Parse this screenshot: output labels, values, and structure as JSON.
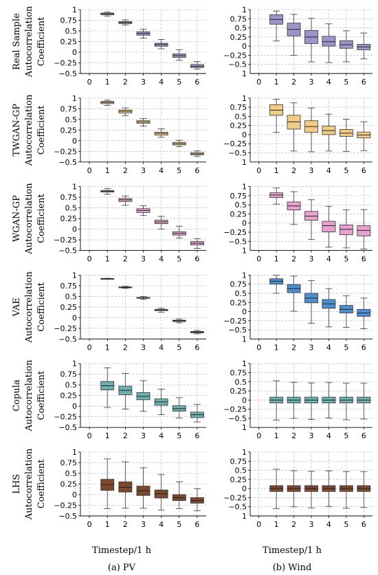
{
  "figure": {
    "xlabel": "Timestep/1 h",
    "columns": [
      {
        "key": "pv",
        "caption": "(a) PV"
      },
      {
        "key": "wind",
        "caption": "(b) Wind"
      }
    ],
    "rows": [
      {
        "name": "Real Sample",
        "ylabel_line2": "Autocorrelation",
        "ylabel_line3": "Coefficient"
      },
      {
        "name": "TWGAN-GP",
        "ylabel_line2": "Autocorrelation",
        "ylabel_line3": "Coefficient"
      },
      {
        "name": "WGAN-GP",
        "ylabel_line2": "Autocorrelation",
        "ylabel_line3": "Coefficient"
      },
      {
        "name": "VAE",
        "ylabel_line2": "Autocorrelation",
        "ylabel_line3": "Coefficient"
      },
      {
        "name": "Copula",
        "ylabel_line2": "Autocorrelation",
        "ylabel_line3": "Coefficient"
      },
      {
        "name": "LHS",
        "ylabel_line2": "Autocorrelation",
        "ylabel_line3": "Coefficient"
      }
    ]
  },
  "chart_data": [
    {
      "type": "box",
      "row": "Real Sample",
      "column": "(a) PV",
      "color": "#9b95c9",
      "x": [
        1,
        2,
        3,
        4,
        5,
        6
      ],
      "ylim": [
        -0.5,
        1
      ],
      "yticks": [
        -0.5,
        -0.25,
        0,
        0.25,
        0.5,
        0.75,
        1
      ],
      "ytick_labels": [
        "−0.5",
        "−0.25",
        "0",
        "0.25",
        "0.5",
        "0.75",
        "1"
      ],
      "xticks": [
        0,
        1,
        2,
        3,
        4,
        5,
        6
      ],
      "grid": true,
      "boxes": [
        {
          "whislo": 0.85,
          "q1": 0.88,
          "med": 0.9,
          "q3": 0.92,
          "whishi": 0.94
        },
        {
          "whislo": 0.64,
          "q1": 0.67,
          "med": 0.7,
          "q3": 0.72,
          "whishi": 0.76
        },
        {
          "whislo": 0.33,
          "q1": 0.4,
          "med": 0.44,
          "q3": 0.48,
          "whishi": 0.54
        },
        {
          "whislo": 0.08,
          "q1": 0.14,
          "med": 0.18,
          "q3": 0.21,
          "whishi": 0.3
        },
        {
          "whislo": -0.19,
          "q1": -0.12,
          "med": -0.08,
          "q3": -0.04,
          "whishi": 0.06
        },
        {
          "whislo": -0.4,
          "q1": -0.36,
          "med": -0.33,
          "q3": -0.29,
          "whishi": -0.22
        }
      ]
    },
    {
      "type": "box",
      "row": "Real Sample",
      "column": "(b) Wind",
      "color": "#9b95c9",
      "x": [
        1,
        2,
        3,
        4,
        5,
        6
      ],
      "ylim": [
        -0.75,
        1
      ],
      "yticks": [
        -0.5,
        -0.25,
        0,
        0.25,
        0.5,
        0.75,
        1
      ],
      "ytick_labels": [
        "−0.5",
        "−0.25",
        "0",
        "0.25",
        "0.5",
        "0.75",
        "1"
      ],
      "extra_ytick_labels": [
        {
          "value": -0.75,
          "label": "1"
        }
      ],
      "xticks": [
        0,
        1,
        2,
        3,
        4,
        5,
        6
      ],
      "grid": true,
      "boxes": [
        {
          "whislo": 0.14,
          "q1": 0.6,
          "med": 0.73,
          "q3": 0.86,
          "whishi": 0.96
        },
        {
          "whislo": -0.25,
          "q1": 0.28,
          "med": 0.46,
          "q3": 0.63,
          "whishi": 0.87
        },
        {
          "whislo": -0.43,
          "q1": 0.07,
          "med": 0.25,
          "q3": 0.43,
          "whishi": 0.76
        },
        {
          "whislo": -0.45,
          "q1": 0,
          "med": 0.12,
          "q3": 0.27,
          "whishi": 0.61
        },
        {
          "whislo": -0.43,
          "q1": -0.06,
          "med": 0.04,
          "q3": 0.15,
          "whishi": 0.42
        },
        {
          "whislo": -0.35,
          "q1": -0.1,
          "med": -0.02,
          "q3": 0.05,
          "whishi": 0.36
        }
      ]
    },
    {
      "type": "box",
      "row": "TWGAN-GP",
      "column": "(a) PV",
      "color": "#f0cc86",
      "x": [
        1,
        2,
        3,
        4,
        5,
        6
      ],
      "ylim": [
        -0.5,
        1
      ],
      "yticks": [
        -0.5,
        -0.25,
        0,
        0.25,
        0.5,
        0.75,
        1
      ],
      "ytick_labels": [
        "−0.5",
        "−0.25",
        "0",
        "0.25",
        "0.5",
        "0.75",
        "1"
      ],
      "xticks": [
        0,
        1,
        2,
        3,
        4,
        5,
        6
      ],
      "grid": true,
      "boxes": [
        {
          "whislo": 0.83,
          "q1": 0.87,
          "med": 0.9,
          "q3": 0.92,
          "whishi": 0.95
        },
        {
          "whislo": 0.59,
          "q1": 0.65,
          "med": 0.69,
          "q3": 0.72,
          "whishi": 0.77
        },
        {
          "whislo": 0.34,
          "q1": 0.41,
          "med": 0.44,
          "q3": 0.47,
          "whishi": 0.52
        },
        {
          "whislo": 0.08,
          "q1": 0.13,
          "med": 0.17,
          "q3": 0.2,
          "whishi": 0.28
        },
        {
          "whislo": -0.14,
          "q1": -0.1,
          "med": -0.07,
          "q3": -0.04,
          "whishi": 0.01
        },
        {
          "whislo": -0.37,
          "q1": -0.33,
          "med": -0.31,
          "q3": -0.28,
          "whishi": -0.24
        }
      ]
    },
    {
      "type": "box",
      "row": "TWGAN-GP",
      "column": "(b) Wind",
      "color": "#f0cc86",
      "x": [
        1,
        2,
        3,
        4,
        5,
        6
      ],
      "ylim": [
        -0.75,
        1
      ],
      "yticks": [
        -0.5,
        -0.25,
        0,
        0.25,
        0.5,
        0.75,
        1
      ],
      "ytick_labels": [
        "−0.5",
        "−0.25",
        "0",
        "0.25",
        "0.5",
        "0.75",
        "1"
      ],
      "extra_ytick_labels": [
        {
          "value": -0.75,
          "label": "1"
        }
      ],
      "xticks": [
        0,
        1,
        2,
        3,
        4,
        5,
        6
      ],
      "grid": true,
      "boxes": [
        {
          "whislo": 0.06,
          "q1": 0.53,
          "med": 0.67,
          "q3": 0.82,
          "whishi": 0.97
        },
        {
          "whislo": -0.45,
          "q1": 0.15,
          "med": 0.35,
          "q3": 0.53,
          "whishi": 0.87
        },
        {
          "whislo": -0.47,
          "q1": 0.06,
          "med": 0.22,
          "q3": 0.38,
          "whishi": 0.73
        },
        {
          "whislo": -0.45,
          "q1": 0,
          "med": 0.11,
          "q3": 0.23,
          "whishi": 0.56
        },
        {
          "whislo": -0.46,
          "q1": -0.05,
          "med": 0.04,
          "q3": 0.14,
          "whishi": 0.42
        },
        {
          "whislo": -0.44,
          "q1": -0.09,
          "med": -0.01,
          "q3": 0.07,
          "whishi": 0.35
        }
      ]
    },
    {
      "type": "box",
      "row": "WGAN-GP",
      "column": "(a) PV",
      "color": "#e7a2cf",
      "x": [
        1,
        2,
        3,
        4,
        5,
        6
      ],
      "ylim": [
        -0.5,
        1
      ],
      "yticks": [
        -0.5,
        -0.25,
        0,
        0.25,
        0.5,
        0.75,
        1
      ],
      "ytick_labels": [
        "−0.5",
        "−0.25",
        "0",
        "0.25",
        "0.5",
        "0.75",
        "1"
      ],
      "xticks": [
        0,
        1,
        2,
        3,
        4,
        5,
        6
      ],
      "grid": true,
      "boxes": [
        {
          "whislo": 0.82,
          "q1": 0.87,
          "med": 0.89,
          "q3": 0.91,
          "whishi": 0.95
        },
        {
          "whislo": 0.56,
          "q1": 0.65,
          "med": 0.69,
          "q3": 0.72,
          "whishi": 0.78
        },
        {
          "whislo": 0.32,
          "q1": 0.39,
          "med": 0.44,
          "q3": 0.48,
          "whishi": 0.55
        },
        {
          "whislo": 0.0,
          "q1": 0.13,
          "med": 0.17,
          "q3": 0.21,
          "whishi": 0.3
        },
        {
          "whislo": -0.21,
          "q1": -0.14,
          "med": -0.1,
          "q3": -0.06,
          "whishi": 0.07
        },
        {
          "whislo": -0.45,
          "q1": -0.37,
          "med": -0.33,
          "q3": -0.29,
          "whishi": -0.22
        }
      ]
    },
    {
      "type": "box",
      "row": "WGAN-GP",
      "column": "(b) Wind",
      "color": "#e7a2cf",
      "x": [
        1,
        2,
        3,
        4,
        5,
        6
      ],
      "ylim": [
        -0.75,
        1
      ],
      "yticks": [
        -0.5,
        -0.25,
        0,
        0.25,
        0.5,
        0.75,
        1
      ],
      "ytick_labels": [
        "−0.5",
        "−0.25",
        "0",
        "0.25",
        "0.5",
        "0.75",
        "1"
      ],
      "extra_ytick_labels": [
        {
          "value": -0.75,
          "label": "1"
        }
      ],
      "xticks": [
        0,
        1,
        2,
        3,
        4,
        5,
        6
      ],
      "grid": true,
      "boxes": [
        {
          "whislo": 0.52,
          "q1": 0.7,
          "med": 0.77,
          "q3": 0.83,
          "whishi": 0.96
        },
        {
          "whislo": -0.03,
          "q1": 0.36,
          "med": 0.47,
          "q3": 0.58,
          "whishi": 0.86
        },
        {
          "whislo": -0.45,
          "q1": 0.08,
          "med": 0.19,
          "q3": 0.32,
          "whishi": 0.64
        },
        {
          "whislo": -0.66,
          "q1": -0.24,
          "med": -0.07,
          "q3": 0.05,
          "whishi": 0.46
        },
        {
          "whislo": -0.68,
          "q1": -0.32,
          "med": -0.17,
          "q3": -0.05,
          "whishi": 0.36
        },
        {
          "whislo": -0.71,
          "q1": -0.35,
          "med": -0.2,
          "q3": -0.07,
          "whishi": 0.37
        }
      ]
    },
    {
      "type": "box",
      "row": "VAE",
      "column": "(a) PV",
      "color": "#4f8fd0",
      "x": [
        1,
        2,
        3,
        4,
        5,
        6
      ],
      "ylim": [
        -0.5,
        1
      ],
      "yticks": [
        -0.5,
        -0.25,
        0,
        0.25,
        0.5,
        0.75,
        1
      ],
      "ytick_labels": [
        "−0.5",
        "−0.25",
        "0",
        "0.25",
        "0.5",
        "0.75",
        "1"
      ],
      "xticks": [
        0,
        1,
        2,
        3,
        4,
        5,
        6
      ],
      "grid": true,
      "boxes": [
        {
          "whislo": 0.905,
          "q1": 0.912,
          "med": 0.915,
          "q3": 0.918,
          "whishi": 0.925
        },
        {
          "whislo": 0.69,
          "q1": 0.705,
          "med": 0.712,
          "q3": 0.72,
          "whishi": 0.735
        },
        {
          "whislo": 0.43,
          "q1": 0.455,
          "med": 0.465,
          "q3": 0.475,
          "whishi": 0.5
        },
        {
          "whislo": 0.13,
          "q1": 0.165,
          "med": 0.18,
          "q3": 0.195,
          "whishi": 0.22
        },
        {
          "whislo": -0.12,
          "q1": -0.09,
          "med": -0.075,
          "q3": -0.06,
          "whishi": -0.03
        },
        {
          "whislo": -0.38,
          "q1": -0.355,
          "med": -0.34,
          "q3": -0.325,
          "whishi": -0.3
        }
      ]
    },
    {
      "type": "box",
      "row": "VAE",
      "column": "(b) Wind",
      "color": "#4f8fd0",
      "x": [
        1,
        2,
        3,
        4,
        5,
        6
      ],
      "ylim": [
        -0.75,
        1
      ],
      "yticks": [
        -0.5,
        -0.25,
        0,
        0.25,
        0.5,
        0.75,
        1
      ],
      "ytick_labels": [
        "−0.5",
        "−0.25",
        "0",
        "0.25",
        "0.5",
        "0.75",
        "1"
      ],
      "extra_ytick_labels": [
        {
          "value": -0.75,
          "label": "1"
        }
      ],
      "xticks": [
        0,
        1,
        2,
        3,
        4,
        5,
        6
      ],
      "grid": true,
      "boxes": [
        {
          "whislo": 0.5,
          "q1": 0.75,
          "med": 0.83,
          "q3": 0.9,
          "whishi": 1.0
        },
        {
          "whislo": 0.01,
          "q1": 0.52,
          "med": 0.63,
          "q3": 0.74,
          "whishi": 0.97
        },
        {
          "whislo": -0.32,
          "q1": 0.24,
          "med": 0.37,
          "q3": 0.5,
          "whishi": 0.85
        },
        {
          "whislo": -0.42,
          "q1": 0.09,
          "med": 0.21,
          "q3": 0.33,
          "whishi": 0.63
        },
        {
          "whislo": -0.43,
          "q1": -0.04,
          "med": 0.06,
          "q3": 0.17,
          "whishi": 0.43
        },
        {
          "whislo": -0.47,
          "q1": -0.13,
          "med": -0.04,
          "q3": 0.06,
          "whishi": 0.37
        }
      ]
    },
    {
      "type": "box",
      "row": "Copula",
      "column": "(a) PV",
      "color": "#6fb0ad",
      "x": [
        1,
        2,
        3,
        4,
        5,
        6
      ],
      "ylim": [
        -0.5,
        1
      ],
      "yticks": [
        -0.5,
        -0.25,
        0,
        0.25,
        0.5,
        0.75,
        1
      ],
      "ytick_labels": [
        "−0.5",
        "−0.25",
        "0",
        "0.25",
        "0.5",
        "0.75",
        "1"
      ],
      "xticks": [
        0,
        1,
        2,
        3,
        4,
        5,
        6
      ],
      "grid": true,
      "boxes": [
        {
          "whislo": -0.03,
          "q1": 0.38,
          "med": 0.48,
          "q3": 0.58,
          "whishi": 0.9
        },
        {
          "whislo": -0.07,
          "q1": 0.27,
          "med": 0.37,
          "q3": 0.47,
          "whishi": 0.77
        },
        {
          "whislo": -0.12,
          "q1": 0.15,
          "med": 0.23,
          "q3": 0.32,
          "whishi": 0.6
        },
        {
          "whislo": -0.2,
          "q1": 0.02,
          "med": 0.1,
          "q3": 0.17,
          "whishi": 0.4
        },
        {
          "whislo": -0.28,
          "q1": -0.12,
          "med": -0.06,
          "q3": 0.01,
          "whishi": 0.2
        },
        {
          "whislo": -0.37,
          "q1": -0.27,
          "med": -0.2,
          "q3": -0.14,
          "whishi": 0.04
        }
      ]
    },
    {
      "type": "box",
      "row": "Copula",
      "column": "(b) Wind",
      "color": "#6fb0ad",
      "x": [
        1,
        2,
        3,
        4,
        5,
        6
      ],
      "ylim": [
        -0.75,
        1
      ],
      "yticks": [
        -0.5,
        -0.25,
        0,
        0.25,
        0.5,
        0.75,
        1
      ],
      "ytick_labels": [
        "−0.5",
        "−0.25",
        "0",
        "0.25",
        "0.5",
        "0.75",
        "1"
      ],
      "extra_ytick_labels": [
        {
          "value": -0.75,
          "label": "1"
        }
      ],
      "xticks": [
        0,
        1,
        2,
        3,
        4,
        5,
        6
      ],
      "grid": true,
      "boxes": [
        {
          "whislo": -0.55,
          "q1": -0.08,
          "med": 0.0,
          "q3": 0.08,
          "whishi": 0.53
        },
        {
          "whislo": -0.5,
          "q1": -0.08,
          "med": 0.0,
          "q3": 0.08,
          "whishi": 0.49
        },
        {
          "whislo": -0.53,
          "q1": -0.08,
          "med": 0.0,
          "q3": 0.08,
          "whishi": 0.47
        },
        {
          "whislo": -0.49,
          "q1": -0.08,
          "med": 0.0,
          "q3": 0.08,
          "whishi": 0.48
        },
        {
          "whislo": -0.54,
          "q1": -0.08,
          "med": 0.0,
          "q3": 0.08,
          "whishi": 0.46
        },
        {
          "whislo": -0.52,
          "q1": -0.08,
          "med": 0.0,
          "q3": 0.08,
          "whishi": 0.46
        }
      ]
    },
    {
      "type": "box",
      "row": "LHS",
      "column": "(a) PV",
      "color": "#7b4a2e",
      "x": [
        1,
        2,
        3,
        4,
        5,
        6
      ],
      "ylim": [
        -0.5,
        1
      ],
      "yticks": [
        -0.5,
        -0.25,
        0,
        0.25,
        0.5,
        0.75,
        1
      ],
      "ytick_labels": [
        "−0.5",
        "−0.25",
        "0",
        "0.25",
        "0.5",
        "0.75",
        "1"
      ],
      "xticks": [
        0,
        1,
        2,
        3,
        4,
        5,
        6
      ],
      "grid": true,
      "boxes": [
        {
          "whislo": -0.33,
          "q1": 0.1,
          "med": 0.23,
          "q3": 0.36,
          "whishi": 0.84
        },
        {
          "whislo": -0.32,
          "q1": 0.06,
          "med": 0.17,
          "q3": 0.3,
          "whishi": 0.77
        },
        {
          "whislo": -0.32,
          "q1": -0.02,
          "med": 0.09,
          "q3": 0.2,
          "whishi": 0.63
        },
        {
          "whislo": -0.36,
          "q1": -0.08,
          "med": 0.02,
          "q3": 0.11,
          "whishi": 0.47
        },
        {
          "whislo": -0.33,
          "q1": -0.14,
          "med": -0.07,
          "q3": 0.0,
          "whishi": 0.3
        },
        {
          "whislo": -0.38,
          "q1": -0.2,
          "med": -0.14,
          "q3": -0.07,
          "whishi": 0.14
        }
      ]
    },
    {
      "type": "box",
      "row": "LHS",
      "column": "(b) Wind",
      "color": "#7b4a2e",
      "x": [
        1,
        2,
        3,
        4,
        5,
        6
      ],
      "ylim": [
        -0.75,
        1
      ],
      "yticks": [
        -0.5,
        -0.25,
        0,
        0.25,
        0.5,
        0.75,
        1
      ],
      "ytick_labels": [
        "−0.5",
        "−0.25",
        "0",
        "0.25",
        "0.5",
        "0.75",
        "1"
      ],
      "extra_ytick_labels": [
        {
          "value": -0.75,
          "label": "1"
        }
      ],
      "xticks": [
        0,
        1,
        2,
        3,
        4,
        5,
        6
      ],
      "grid": true,
      "boxes": [
        {
          "whislo": -0.55,
          "q1": -0.08,
          "med": 0.0,
          "q3": 0.08,
          "whishi": 0.53
        },
        {
          "whislo": -0.5,
          "q1": -0.08,
          "med": 0.0,
          "q3": 0.08,
          "whishi": 0.49
        },
        {
          "whislo": -0.53,
          "q1": -0.08,
          "med": 0.0,
          "q3": 0.08,
          "whishi": 0.47
        },
        {
          "whislo": -0.49,
          "q1": -0.08,
          "med": 0.0,
          "q3": 0.08,
          "whishi": 0.48
        },
        {
          "whislo": -0.54,
          "q1": -0.08,
          "med": 0.0,
          "q3": 0.08,
          "whishi": 0.46
        },
        {
          "whislo": -0.52,
          "q1": -0.08,
          "med": 0.0,
          "q3": 0.08,
          "whishi": 0.46
        }
      ]
    }
  ]
}
